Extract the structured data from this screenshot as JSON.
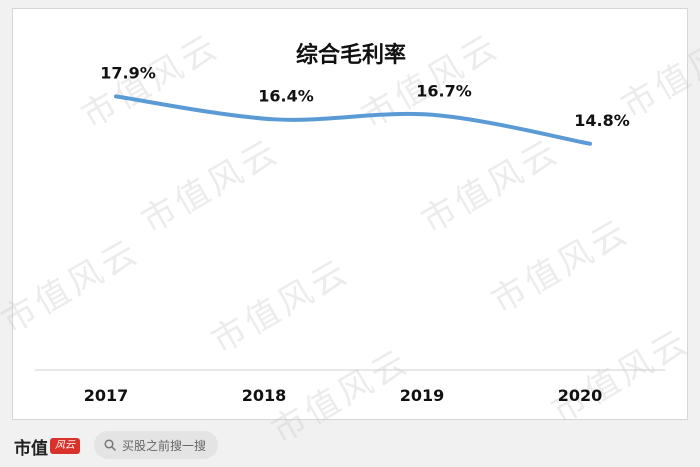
{
  "chart_data": {
    "type": "line",
    "title": "综合毛利率",
    "categories": [
      "2017",
      "2018",
      "2019",
      "2020"
    ],
    "series": [
      {
        "values": [
          17.9,
          16.4,
          16.7,
          14.8
        ],
        "labels": [
          "17.9%",
          "16.4%",
          "16.7%",
          "14.8%"
        ]
      }
    ],
    "ylim": [
      0,
      21
    ],
    "line_color": "#5b9bd5",
    "smooth": true,
    "grid": false,
    "legend": "none"
  },
  "watermark": "市值风云",
  "footer": {
    "brand": "市值",
    "brand_logo": "风云",
    "search_placeholder": "买股之前搜一搜",
    "search_icon": "magnifier-icon"
  }
}
